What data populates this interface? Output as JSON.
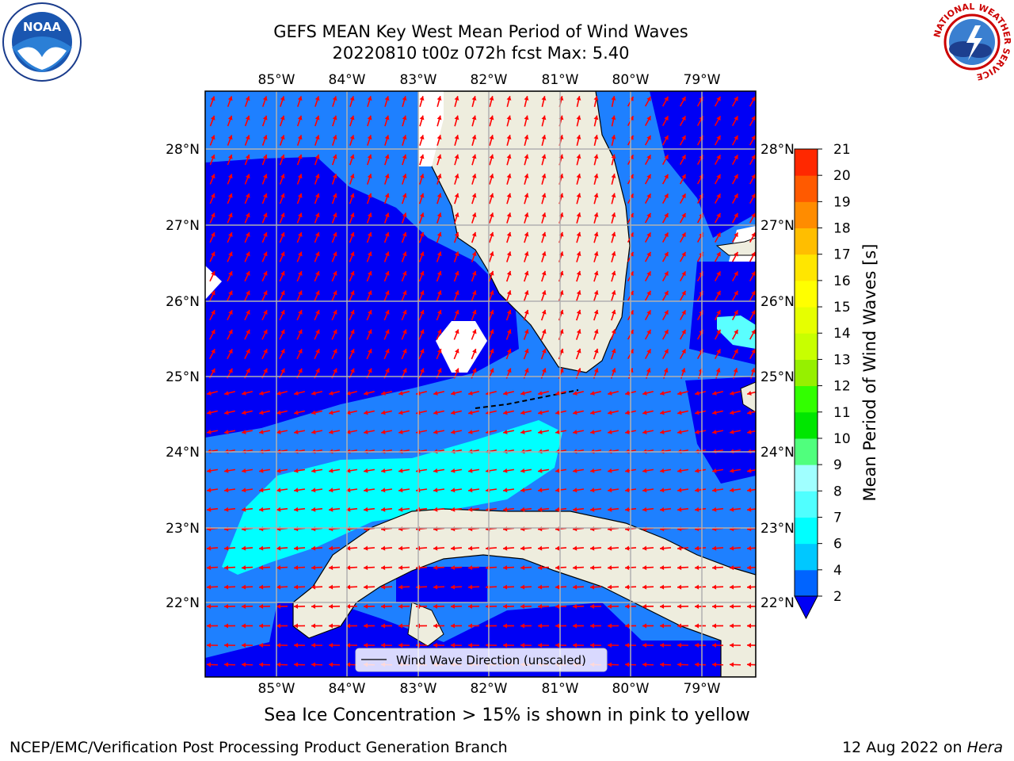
{
  "header": {
    "title_line1": "GEFS MEAN Key West Mean Period of Wind Waves",
    "title_line2": "20220810 t00z 072h fcst   Max: 5.40"
  },
  "logos": {
    "left": "NOAA",
    "right": "NATIONAL WEATHER SERVICE"
  },
  "map": {
    "lon_labels": [
      "85°W",
      "84°W",
      "83°W",
      "82°W",
      "81°W",
      "80°W",
      "79°W"
    ],
    "lat_labels": [
      "28°N",
      "27°N",
      "26°N",
      "25°N",
      "24°N",
      "23°N",
      "22°N"
    ],
    "colors": {
      "ocean_low": "#1e80ff",
      "ocean_lowest": "#0000f5",
      "ocean_mid": "#00ffff",
      "land": "#eeedde",
      "arrow": "#ff0000",
      "grid": "#b0b0b0"
    },
    "legend_label": "Wind Wave Direction (unscaled)"
  },
  "colorbar": {
    "label": "Mean Period of Wind Waves [s]",
    "ticks": [
      "2",
      "4",
      "6",
      "7",
      "8",
      "9",
      "10",
      "11",
      "12",
      "13",
      "14",
      "15",
      "16",
      "17",
      "18",
      "19",
      "20",
      "21"
    ],
    "colors": [
      "#0064ff",
      "#00c8ff",
      "#00ffff",
      "#50ffff",
      "#a0ffff",
      "#50ff7d",
      "#00e600",
      "#32ff00",
      "#96f000",
      "#c8ff00",
      "#e6ff00",
      "#ffff00",
      "#ffe600",
      "#ffbe00",
      "#ff8c00",
      "#ff5a00",
      "#ff2800"
    ]
  },
  "captions": {
    "ice_note": "Sea Ice Concentration > 15% is shown in pink to yellow",
    "footer_left": "NCEP/EMC/Verification Post Processing Product Generation Branch",
    "footer_right_prefix": "12 Aug 2022 on ",
    "footer_right_host": "Hera"
  }
}
